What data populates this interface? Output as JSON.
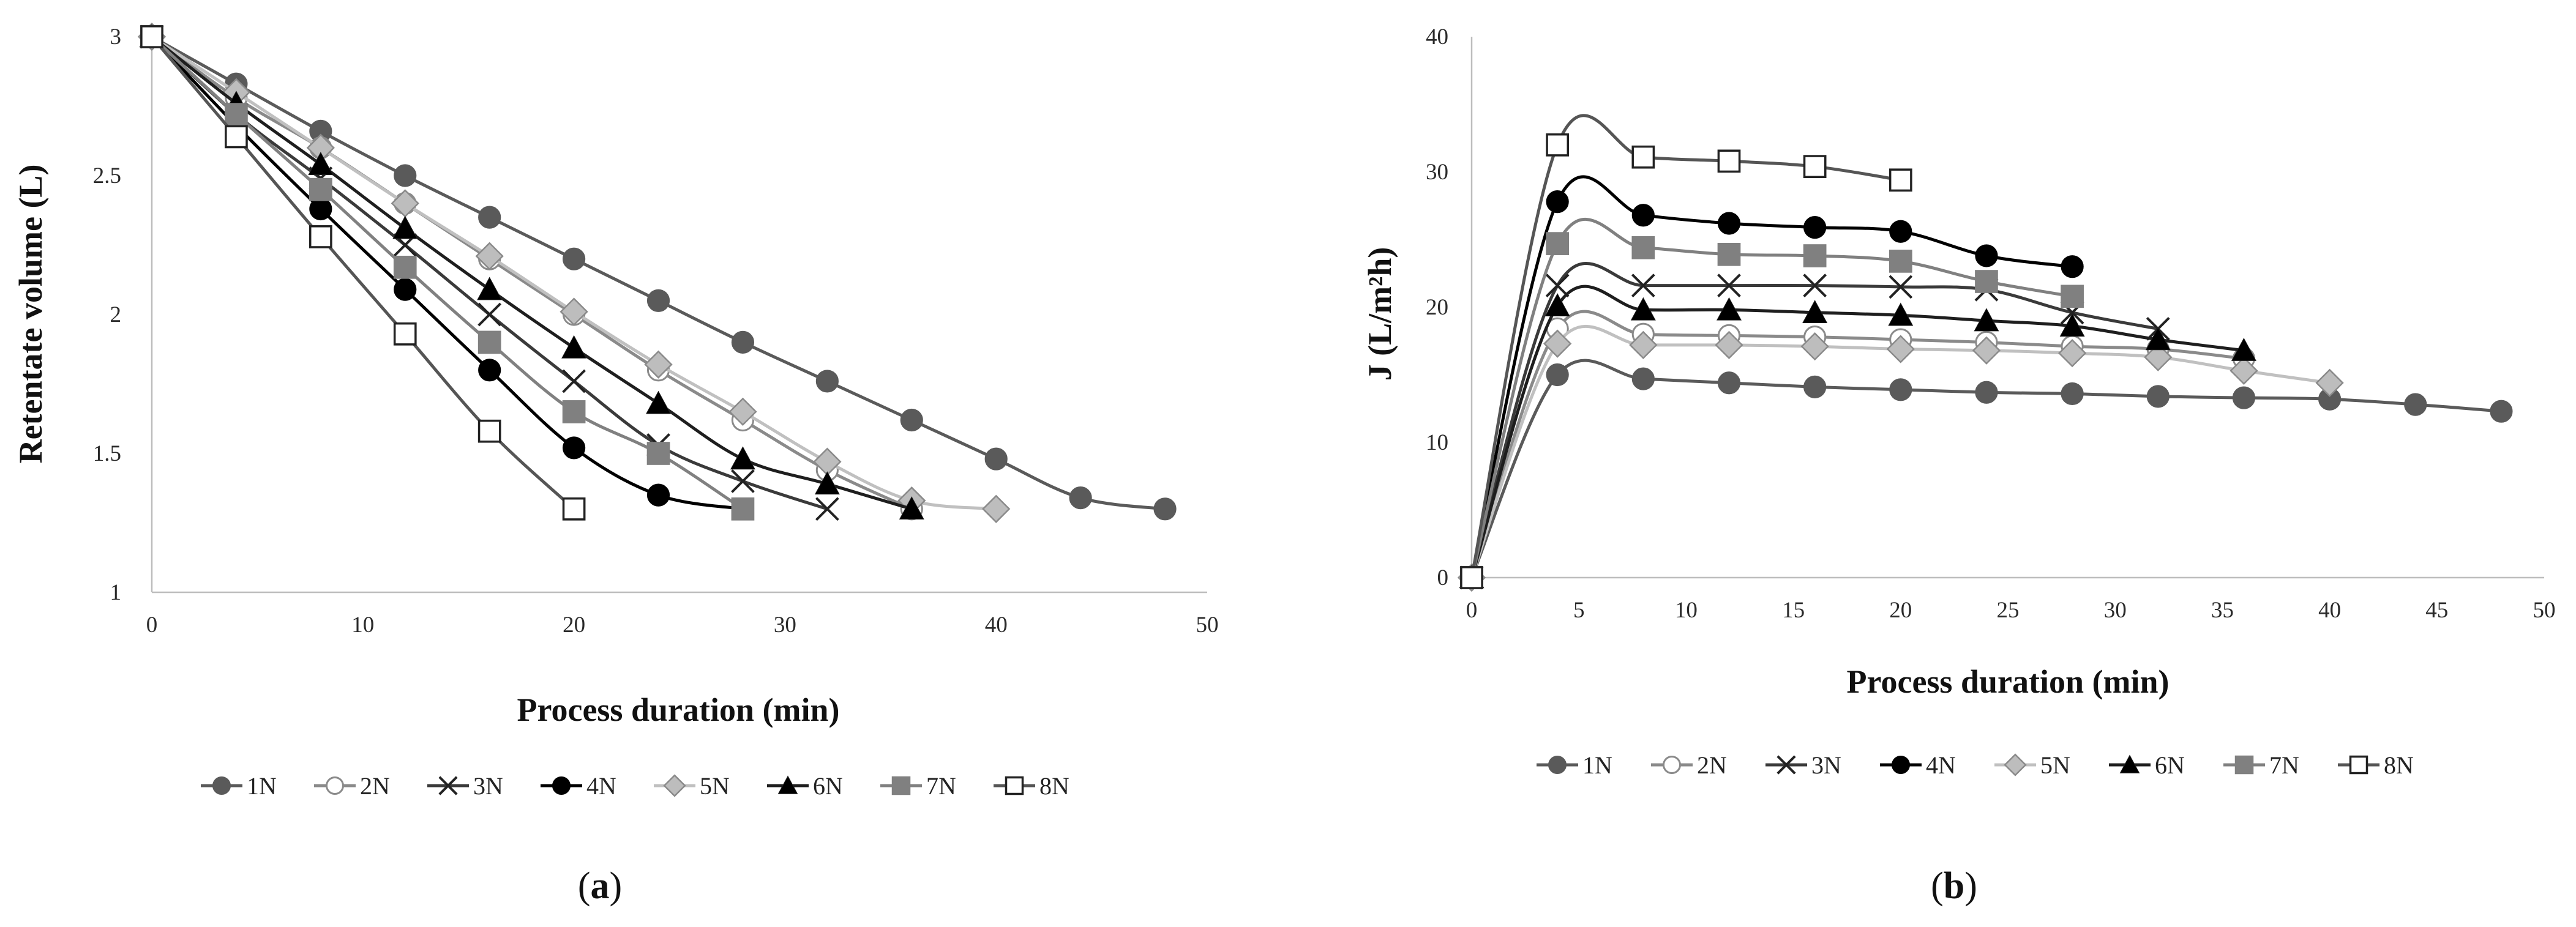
{
  "chart_data": [
    {
      "type": "line",
      "panel_label": {
        "open": "(",
        "letter": "a",
        "close": ")"
      },
      "xlabel": "Process duration (min)",
      "ylabel": "Retentate volume (L)",
      "xlim": [
        0,
        50
      ],
      "ylim": [
        1,
        3
      ],
      "xticks": [
        0,
        10,
        20,
        30,
        40,
        50
      ],
      "xtick_labels": [
        "0",
        "10",
        "20",
        "30",
        "40",
        "50"
      ],
      "yticks": [
        1,
        1.5,
        2,
        2.5,
        3
      ],
      "ytick_labels": [
        "1",
        "1.5",
        "2",
        "2.5",
        "3"
      ],
      "legend_position": "bottom",
      "series": [
        {
          "name": "1N",
          "marker": "circle",
          "color": "#5a5a5a",
          "fill": "#5a5a5a",
          "x": [
            0,
            4,
            8,
            12,
            16,
            20,
            24,
            28,
            32,
            36,
            40,
            44,
            48
          ],
          "y": [
            3,
            2.83,
            2.66,
            2.5,
            2.35,
            2.2,
            2.05,
            1.9,
            1.76,
            1.62,
            1.48,
            1.34,
            1.3
          ]
        },
        {
          "name": "2N",
          "marker": "circle",
          "color": "#8a8a8a",
          "fill": "#ffffff",
          "x": [
            0,
            4,
            8,
            12,
            16,
            20,
            24,
            28,
            32,
            36
          ],
          "y": [
            3,
            2.78,
            2.6,
            2.4,
            2.2,
            2.0,
            1.8,
            1.62,
            1.44,
            1.3
          ]
        },
        {
          "name": "3N",
          "marker": "x",
          "color": "#3a3a3a",
          "fill": "none",
          "x": [
            0,
            4,
            8,
            12,
            16,
            20,
            24,
            28,
            32
          ],
          "y": [
            3,
            2.72,
            2.49,
            2.25,
            2.0,
            1.76,
            1.53,
            1.4,
            1.3
          ]
        },
        {
          "name": "4N",
          "marker": "circle",
          "color": "#000000",
          "fill": "#000000",
          "x": [
            0,
            4,
            8,
            12,
            16,
            20,
            24,
            28
          ],
          "y": [
            3,
            2.68,
            2.38,
            2.09,
            1.8,
            1.52,
            1.35,
            1.3
          ]
        },
        {
          "name": "5N",
          "marker": "diamond",
          "color": "#c0c0c0",
          "fill": "#bdbdbd",
          "x": [
            0,
            4,
            8,
            12,
            16,
            20,
            24,
            28,
            32,
            36,
            40
          ],
          "y": [
            3,
            2.8,
            2.6,
            2.4,
            2.21,
            2.01,
            1.82,
            1.65,
            1.47,
            1.33,
            1.3
          ]
        },
        {
          "name": "6N",
          "marker": "triangle",
          "color": "#1e1e1e",
          "fill": "#000000",
          "x": [
            0,
            4,
            8,
            12,
            16,
            20,
            24,
            28,
            32,
            36
          ],
          "y": [
            3,
            2.76,
            2.54,
            2.31,
            2.09,
            1.88,
            1.68,
            1.48,
            1.39,
            1.3
          ]
        },
        {
          "name": "7N",
          "marker": "square",
          "color": "#808080",
          "fill": "#808080",
          "x": [
            0,
            4,
            8,
            12,
            16,
            20,
            24,
            28
          ],
          "y": [
            3,
            2.72,
            2.45,
            2.17,
            1.9,
            1.65,
            1.5,
            1.3
          ]
        },
        {
          "name": "8N",
          "marker": "square",
          "color": "#555555",
          "fill": "#ffffff",
          "x": [
            0,
            4,
            8,
            12,
            16,
            20
          ],
          "y": [
            3,
            2.64,
            2.28,
            1.93,
            1.58,
            1.3
          ]
        }
      ]
    },
    {
      "type": "line",
      "panel_label": {
        "open": "(",
        "letter": "b",
        "close": ")"
      },
      "xlabel": "Process duration (min)",
      "ylabel": "J (L/m²h)",
      "xlim": [
        0,
        50
      ],
      "ylim": [
        0,
        40
      ],
      "xticks": [
        0,
        5,
        10,
        15,
        20,
        25,
        30,
        35,
        40,
        45,
        50
      ],
      "xtick_labels": [
        "0",
        "5",
        "10",
        "15",
        "20",
        "25",
        "30",
        "35",
        "40",
        "45",
        "50"
      ],
      "yticks": [
        0,
        10,
        20,
        30,
        40
      ],
      "ytick_labels": [
        "0",
        "10",
        "20",
        "30",
        "40"
      ],
      "legend_position": "bottom",
      "series": [
        {
          "name": "1N",
          "marker": "circle",
          "color": "#5a5a5a",
          "fill": "#5a5a5a",
          "x": [
            0,
            4,
            8,
            12,
            16,
            20,
            24,
            28,
            32,
            36,
            40,
            44,
            48
          ],
          "y": [
            0,
            15.0,
            14.7,
            14.4,
            14.1,
            13.9,
            13.7,
            13.6,
            13.4,
            13.3,
            13.2,
            12.8,
            12.3
          ]
        },
        {
          "name": "2N",
          "marker": "circle",
          "color": "#8a8a8a",
          "fill": "#ffffff",
          "x": [
            0,
            4,
            8,
            12,
            16,
            20,
            24,
            28,
            32,
            36
          ],
          "y": [
            0,
            18.4,
            18.0,
            17.9,
            17.8,
            17.6,
            17.4,
            17.1,
            16.9,
            16.2
          ]
        },
        {
          "name": "3N",
          "marker": "x",
          "color": "#3a3a3a",
          "fill": "none",
          "x": [
            0,
            4,
            8,
            12,
            16,
            20,
            24,
            28,
            32
          ],
          "y": [
            0,
            21.6,
            21.6,
            21.6,
            21.6,
            21.5,
            21.3,
            19.6,
            18.4
          ]
        },
        {
          "name": "4N",
          "marker": "circle",
          "color": "#000000",
          "fill": "#000000",
          "x": [
            0,
            4,
            8,
            12,
            16,
            20,
            24,
            28
          ],
          "y": [
            0,
            27.8,
            26.8,
            26.2,
            25.9,
            25.6,
            23.8,
            23.0
          ]
        },
        {
          "name": "5N",
          "marker": "diamond",
          "color": "#c0c0c0",
          "fill": "#bdbdbd",
          "x": [
            0,
            4,
            8,
            12,
            16,
            20,
            24,
            28,
            32,
            36,
            40
          ],
          "y": [
            0,
            17.3,
            17.2,
            17.2,
            17.1,
            16.9,
            16.8,
            16.6,
            16.3,
            15.3,
            14.4
          ]
        },
        {
          "name": "6N",
          "marker": "triangle",
          "color": "#1e1e1e",
          "fill": "#000000",
          "x": [
            0,
            4,
            8,
            12,
            16,
            20,
            24,
            28,
            32,
            36
          ],
          "y": [
            0,
            20.1,
            19.8,
            19.8,
            19.6,
            19.4,
            19.0,
            18.6,
            17.6,
            16.8
          ]
        },
        {
          "name": "7N",
          "marker": "square",
          "color": "#808080",
          "fill": "#808080",
          "x": [
            0,
            4,
            8,
            12,
            16,
            20,
            24,
            28
          ],
          "y": [
            0,
            24.7,
            24.4,
            23.9,
            23.8,
            23.4,
            21.9,
            20.8
          ]
        },
        {
          "name": "8N",
          "marker": "square",
          "color": "#555555",
          "fill": "#ffffff",
          "x": [
            0,
            4,
            8,
            12,
            16,
            20
          ],
          "y": [
            0,
            32.0,
            31.1,
            30.8,
            30.4,
            29.4
          ]
        }
      ]
    }
  ]
}
